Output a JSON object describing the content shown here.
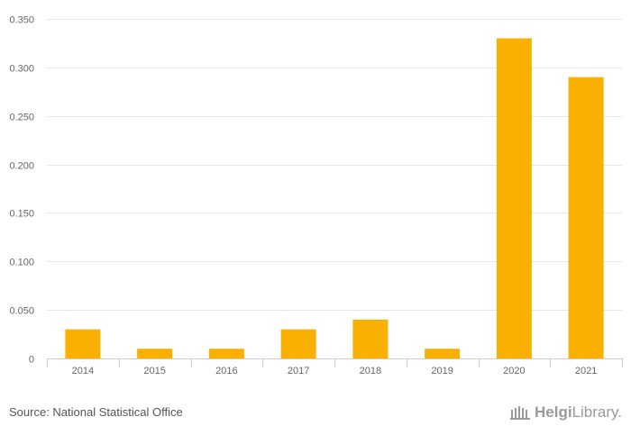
{
  "chart_data": {
    "type": "bar",
    "title": "",
    "xlabel": "",
    "ylabel": "",
    "categories": [
      "2014",
      "2015",
      "2016",
      "2017",
      "2018",
      "2019",
      "2020",
      "2021"
    ],
    "values": [
      0.03,
      0.01,
      0.01,
      0.03,
      0.04,
      0.01,
      0.33,
      0.29
    ],
    "ylim": [
      0,
      0.35
    ],
    "yticks": [
      "0",
      "0.050",
      "0.100",
      "0.150",
      "0.200",
      "0.250",
      "0.300",
      "0.350"
    ],
    "ytick_values": [
      0,
      0.05,
      0.1,
      0.15,
      0.2,
      0.25,
      0.3,
      0.35
    ],
    "grid": true,
    "bar_color": "#F9B000"
  },
  "footer": {
    "source": "Source: National Statistical Office",
    "logo_part1": "Helgi",
    "logo_part2": "Library."
  },
  "colors": {
    "grid": "#e6e6e6",
    "axis": "#cccccc",
    "logo": "#9a9a9a"
  }
}
